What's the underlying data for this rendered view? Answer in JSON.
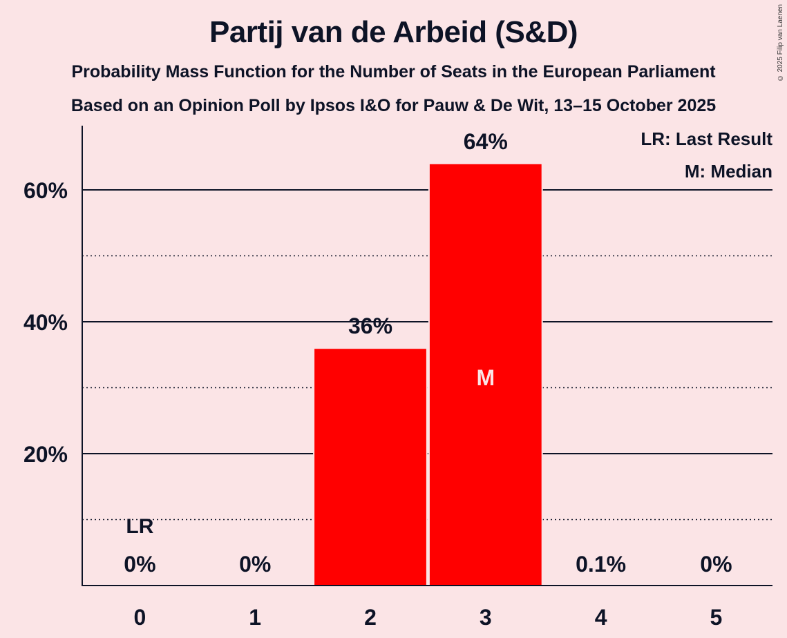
{
  "header": {
    "title": "Partij van de Arbeid (S&D)",
    "subtitle1": "Probability Mass Function for the Number of Seats in the European Parliament",
    "subtitle2": "Based on an Opinion Poll by Ipsos I&O for Pauw & De Wit, 13–15 October 2025",
    "copyright": "© 2025 Filip van Laenen"
  },
  "legend": {
    "lr": "LR: Last Result",
    "m": "M: Median"
  },
  "colors": {
    "background": "#fbe4e6",
    "bar": "#ff0000",
    "text": "#0d1326"
  },
  "chart_data": {
    "type": "bar",
    "title": "Partij van de Arbeid (S&D)",
    "subtitle": "Probability Mass Function for the Number of Seats in the European Parliament",
    "xlabel": "",
    "ylabel": "",
    "categories": [
      "0",
      "1",
      "2",
      "3",
      "4",
      "5"
    ],
    "values": [
      0,
      0,
      36,
      64,
      0.1,
      0
    ],
    "value_labels": [
      "0%",
      "0%",
      "36%",
      "64%",
      "0.1%",
      "0%"
    ],
    "ylim": [
      0,
      70
    ],
    "yticks": [
      20,
      40,
      60
    ],
    "ytick_labels": [
      "20%",
      "40%",
      "60%"
    ],
    "minor_gridlines": [
      10,
      30,
      50
    ],
    "grid": true,
    "annotations": [
      {
        "category": "0",
        "text": "LR",
        "meaning": "Last Result"
      },
      {
        "category": "3",
        "text": "M",
        "meaning": "Median"
      }
    ],
    "legend_position": "top-right"
  }
}
